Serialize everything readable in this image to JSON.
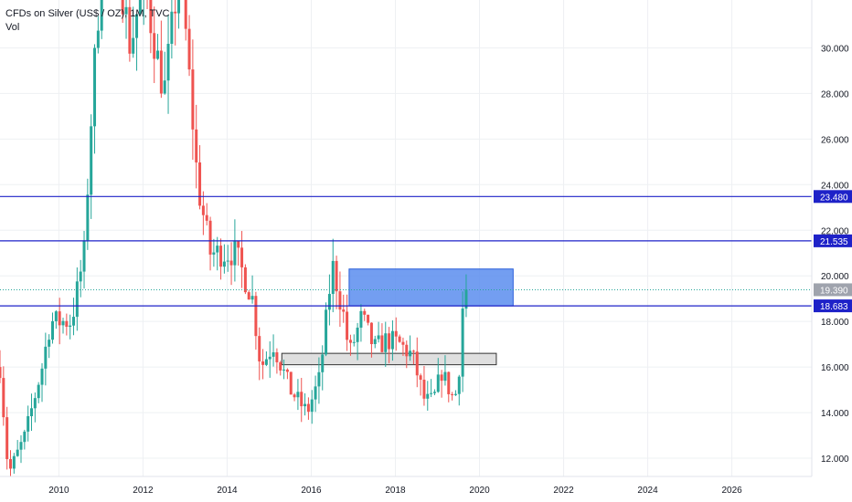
{
  "legend": {
    "title": "CFDs on Silver (US$ / OZ), 1M, TVC",
    "volume": "Vol"
  },
  "colors": {
    "up": "#26a69a",
    "down": "#ef5350",
    "level_line": "#1e22c8",
    "grid": "#eef0f3",
    "axis_text": "#131722",
    "current_price_line": "#26a69a",
    "zone_blue": "#5b8def",
    "zone_gray": "#d9d9d9"
  },
  "chart_data": {
    "type": "candlestick",
    "title": "CFDs on Silver (US$ / OZ), 1M, TVC",
    "xlabel": "",
    "ylabel": "",
    "x_ticks": [
      "2010",
      "2012",
      "2014",
      "2016",
      "2018",
      "2020",
      "2022",
      "2024",
      "2026"
    ],
    "y_ticks": [
      "12.000",
      "14.000",
      "16.000",
      "18.000",
      "20.000",
      "22.000",
      "24.000",
      "26.000",
      "28.000",
      "30.000"
    ],
    "ylim": [
      11.2,
      32.1
    ],
    "xlim": [
      2008.6,
      2027.9
    ],
    "grid": true,
    "legend": "top-left",
    "current_price": 19.39,
    "horizontal_levels": [
      23.48,
      21.535,
      18.683
    ],
    "price_labels": [
      "23.480",
      "21.535",
      "19.390",
      "18.683"
    ],
    "zones": [
      {
        "color": "blue",
        "x_start": 2016.9,
        "x_end": 2020.8,
        "y_low": 18.683,
        "y_high": 20.3
      },
      {
        "color": "gray",
        "x_start": 2015.3,
        "x_end": 2020.4,
        "y_low": 16.1,
        "y_high": 16.6
      }
    ],
    "candles_anchor": [
      [
        2008.6,
        16.0
      ],
      [
        2008.8,
        11.3
      ],
      [
        2009.2,
        13.0
      ],
      [
        2009.6,
        16.0
      ],
      [
        2009.8,
        18.0
      ],
      [
        2010.3,
        18.0
      ],
      [
        2010.6,
        21.0
      ],
      [
        2010.8,
        28.0
      ],
      [
        2011.1,
        36.0
      ],
      [
        2011.4,
        34.0
      ],
      [
        2011.7,
        30.0
      ],
      [
        2012.0,
        33.0
      ],
      [
        2012.5,
        28.0
      ],
      [
        2012.9,
        34.0
      ],
      [
        2013.0,
        31.0
      ],
      [
        2013.3,
        24.0
      ],
      [
        2013.6,
        21.0
      ],
      [
        2013.9,
        21.0
      ],
      [
        2014.2,
        21.0
      ],
      [
        2014.6,
        19.0
      ],
      [
        2014.8,
        16.0
      ],
      [
        2015.1,
        17.0
      ],
      [
        2015.5,
        15.0
      ],
      [
        2015.9,
        14.0
      ],
      [
        2016.2,
        15.5
      ],
      [
        2016.5,
        20.5
      ],
      [
        2016.8,
        18.0
      ],
      [
        2016.9,
        16.5
      ],
      [
        2017.2,
        18.2
      ],
      [
        2017.5,
        16.8
      ],
      [
        2017.8,
        17.2
      ],
      [
        2018.1,
        17.0
      ],
      [
        2018.4,
        16.5
      ],
      [
        2018.7,
        14.5
      ],
      [
        2018.9,
        14.5
      ],
      [
        2019.1,
        15.8
      ],
      [
        2019.4,
        14.5
      ],
      [
        2019.5,
        15.5
      ],
      [
        2019.6,
        18.6
      ],
      [
        2019.7,
        19.39
      ]
    ]
  }
}
